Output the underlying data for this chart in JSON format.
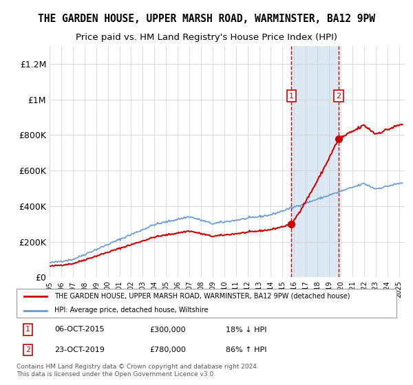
{
  "title": "THE GARDEN HOUSE, UPPER MARSH ROAD, WARMINSTER, BA12 9PW",
  "subtitle": "Price paid vs. HM Land Registry's House Price Index (HPI)",
  "ylabel_ticks": [
    "£0",
    "£200K",
    "£400K",
    "£600K",
    "£800K",
    "£1M",
    "£1.2M"
  ],
  "ytick_values": [
    0,
    200000,
    400000,
    600000,
    800000,
    1000000,
    1200000
  ],
  "ylim": [
    0,
    1300000
  ],
  "xlim_start": 1995.0,
  "xlim_end": 2025.5,
  "legend_line1": "THE GARDEN HOUSE, UPPER MARSH ROAD, WARMINSTER, BA12 9PW (detached house)",
  "legend_line2": "HPI: Average price, detached house, Wiltshire",
  "sale1_date": "06-OCT-2015",
  "sale1_price": "£300,000",
  "sale1_hpi": "18% ↓ HPI",
  "sale1_year": 2015.77,
  "sale1_value": 300000,
  "sale2_date": "23-OCT-2019",
  "sale2_price": "£780,000",
  "sale2_hpi": "86% ↑ HPI",
  "sale2_year": 2019.81,
  "sale2_value": 780000,
  "footer": "Contains HM Land Registry data © Crown copyright and database right 2024.\nThis data is licensed under the Open Government Licence v3.0.",
  "hpi_color": "#6699cc",
  "price_color": "#cc0000",
  "shade_color": "#dce9f5",
  "grid_color": "#cccccc",
  "background_color": "#ffffff"
}
